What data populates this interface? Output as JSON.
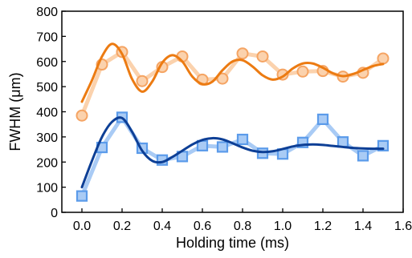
{
  "chart_data": {
    "type": "line",
    "xlabel": "Holding time (ms)",
    "ylabel": "FWHM (μm)",
    "xlim": [
      -0.1,
      1.6
    ],
    "ylim": [
      0,
      800
    ],
    "xticks": [
      0.0,
      0.2,
      0.4,
      0.6,
      0.8,
      1.0,
      1.2,
      1.4,
      1.6
    ],
    "xtick_labels": [
      "0.0",
      "0.2",
      "0.4",
      "0.6",
      "0.8",
      "1.0",
      "1.2",
      "1.4",
      "1.6"
    ],
    "yticks": [
      0,
      100,
      200,
      300,
      400,
      500,
      600,
      700,
      800
    ],
    "ytick_labels": [
      "0",
      "100",
      "200",
      "300",
      "400",
      "500",
      "600",
      "700",
      "800"
    ],
    "grid": false,
    "legend": "none",
    "series": [
      {
        "kind": "data",
        "marker": "circle",
        "color": "#f5a463",
        "line_color": "#fbd2ad",
        "x": [
          0.0,
          0.1,
          0.2,
          0.3,
          0.4,
          0.5,
          0.6,
          0.7,
          0.8,
          0.9,
          1.0,
          1.1,
          1.2,
          1.3,
          1.4,
          1.5
        ],
        "values": [
          385,
          588,
          638,
          522,
          578,
          620,
          528,
          532,
          632,
          620,
          548,
          560,
          562,
          540,
          555,
          612
        ]
      },
      {
        "kind": "fit",
        "color": "#ec7b12",
        "x": [
          0.0,
          0.05,
          0.1,
          0.15,
          0.2,
          0.25,
          0.3,
          0.35,
          0.4,
          0.45,
          0.5,
          0.55,
          0.6,
          0.65,
          0.7,
          0.75,
          0.8,
          0.85,
          0.9,
          0.95,
          1.0,
          1.05,
          1.1,
          1.15,
          1.2,
          1.25,
          1.3,
          1.35,
          1.4,
          1.45,
          1.5
        ],
        "values": [
          440,
          525,
          620,
          670,
          630,
          530,
          480,
          520,
          595,
          625,
          600,
          540,
          510,
          520,
          565,
          600,
          605,
          580,
          545,
          528,
          540,
          572,
          592,
          592,
          575,
          553,
          542,
          550,
          566,
          582,
          590
        ]
      },
      {
        "kind": "data",
        "marker": "square",
        "color": "#5b9bea",
        "line_color": "#a9cbf5",
        "x": [
          0.0,
          0.1,
          0.2,
          0.3,
          0.4,
          0.5,
          0.6,
          0.7,
          0.8,
          0.9,
          1.0,
          1.1,
          1.2,
          1.3,
          1.4,
          1.5
        ],
        "values": [
          65,
          258,
          378,
          255,
          208,
          222,
          265,
          260,
          290,
          235,
          232,
          278,
          370,
          280,
          225,
          265
        ]
      },
      {
        "kind": "fit",
        "color": "#0d3f96",
        "x": [
          0.0,
          0.05,
          0.1,
          0.15,
          0.2,
          0.25,
          0.3,
          0.35,
          0.4,
          0.45,
          0.5,
          0.55,
          0.6,
          0.65,
          0.7,
          0.75,
          0.8,
          0.85,
          0.9,
          0.95,
          1.0,
          1.05,
          1.1,
          1.15,
          1.2,
          1.25,
          1.3,
          1.35,
          1.4,
          1.45,
          1.5
        ],
        "values": [
          100,
          205,
          300,
          360,
          375,
          320,
          245,
          205,
          200,
          220,
          245,
          270,
          288,
          295,
          290,
          275,
          258,
          245,
          240,
          243,
          252,
          262,
          268,
          270,
          268,
          264,
          260,
          256,
          254,
          253,
          253
        ]
      }
    ]
  }
}
